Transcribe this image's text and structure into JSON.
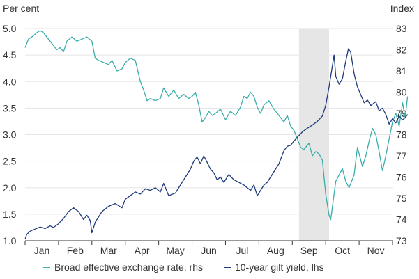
{
  "chart_data": {
    "type": "line",
    "left_unit": "Per cent",
    "right_unit": "Index",
    "x_labels": [
      "Jan",
      "Feb",
      "Mar",
      "Apr",
      "May",
      "Jun",
      "Jul",
      "Aug",
      "Sep",
      "Oct",
      "Nov"
    ],
    "x_range": [
      0,
      11
    ],
    "left_axis": {
      "range": [
        1.0,
        5.0
      ],
      "ticks": [
        "1.0",
        "1.5",
        "2.0",
        "2.5",
        "3.0",
        "3.5",
        "4.0",
        "4.5",
        "5.0"
      ]
    },
    "right_axis": {
      "range": [
        73,
        83
      ],
      "ticks": [
        "73",
        "74",
        "75",
        "76",
        "77",
        "78",
        "79",
        "80",
        "81",
        "82",
        "83"
      ]
    },
    "grid": true,
    "shaded_region": {
      "x_start": 8.2,
      "x_end": 9.1,
      "color": "#e6e6e6"
    },
    "legend_position": "bottom",
    "colors": {
      "exchange": "#3aada8",
      "gilt": "#1f3a7a",
      "grid": "#e5e5e5",
      "shade": "#e6e6e6"
    },
    "series": [
      {
        "name": "Broad effective exchange rate, rhs",
        "axis": "right",
        "color": "#3aada8",
        "points": [
          [
            0.0,
            82.1
          ],
          [
            0.1,
            82.5
          ],
          [
            0.2,
            82.6
          ],
          [
            0.35,
            82.8
          ],
          [
            0.45,
            82.9
          ],
          [
            0.55,
            82.8
          ],
          [
            0.65,
            82.6
          ],
          [
            0.75,
            82.4
          ],
          [
            0.85,
            82.2
          ],
          [
            0.95,
            82.0
          ],
          [
            1.05,
            82.1
          ],
          [
            1.15,
            81.9
          ],
          [
            1.25,
            82.4
          ],
          [
            1.4,
            82.6
          ],
          [
            1.55,
            82.4
          ],
          [
            1.7,
            82.5
          ],
          [
            1.85,
            82.6
          ],
          [
            2.0,
            82.4
          ],
          [
            2.1,
            81.6
          ],
          [
            2.2,
            81.5
          ],
          [
            2.35,
            81.4
          ],
          [
            2.5,
            81.3
          ],
          [
            2.6,
            81.5
          ],
          [
            2.75,
            81.0
          ],
          [
            2.9,
            81.1
          ],
          [
            3.0,
            81.4
          ],
          [
            3.15,
            81.6
          ],
          [
            3.3,
            81.5
          ],
          [
            3.45,
            80.5
          ],
          [
            3.55,
            80.1
          ],
          [
            3.65,
            79.6
          ],
          [
            3.75,
            79.7
          ],
          [
            3.9,
            79.6
          ],
          [
            4.05,
            79.7
          ],
          [
            4.15,
            80.2
          ],
          [
            4.3,
            79.8
          ],
          [
            4.45,
            80.1
          ],
          [
            4.6,
            79.7
          ],
          [
            4.75,
            79.9
          ],
          [
            4.9,
            79.7
          ],
          [
            5.0,
            79.8
          ],
          [
            5.1,
            80.0
          ],
          [
            5.2,
            79.4
          ],
          [
            5.3,
            78.6
          ],
          [
            5.4,
            78.8
          ],
          [
            5.5,
            79.1
          ],
          [
            5.6,
            78.9
          ],
          [
            5.7,
            79.0
          ],
          [
            5.85,
            79.2
          ],
          [
            6.0,
            78.7
          ],
          [
            6.15,
            79.1
          ],
          [
            6.3,
            78.9
          ],
          [
            6.45,
            79.3
          ],
          [
            6.55,
            79.8
          ],
          [
            6.65,
            79.7
          ],
          [
            6.75,
            80.0
          ],
          [
            6.85,
            79.8
          ],
          [
            6.95,
            79.3
          ],
          [
            7.05,
            79.0
          ],
          [
            7.15,
            79.4
          ],
          [
            7.3,
            79.6
          ],
          [
            7.45,
            79.2
          ],
          [
            7.6,
            78.9
          ],
          [
            7.75,
            78.6
          ],
          [
            7.85,
            78.9
          ],
          [
            7.95,
            78.4
          ],
          [
            8.05,
            78.2
          ],
          [
            8.15,
            77.8
          ],
          [
            8.25,
            77.4
          ],
          [
            8.35,
            77.3
          ],
          [
            8.5,
            77.6
          ],
          [
            8.6,
            77.0
          ],
          [
            8.7,
            77.2
          ],
          [
            8.8,
            77.1
          ],
          [
            8.9,
            76.8
          ],
          [
            9.0,
            75.2
          ],
          [
            9.1,
            74.2
          ],
          [
            9.15,
            74.0
          ],
          [
            9.3,
            75.8
          ],
          [
            9.5,
            76.4
          ],
          [
            9.6,
            75.8
          ],
          [
            9.7,
            75.5
          ],
          [
            9.85,
            76.1
          ],
          [
            9.95,
            77.4
          ],
          [
            10.1,
            76.5
          ],
          [
            10.2,
            77.0
          ],
          [
            10.3,
            77.7
          ],
          [
            10.4,
            78.3
          ],
          [
            10.5,
            78.0
          ],
          [
            10.6,
            77.2
          ],
          [
            10.7,
            76.3
          ],
          [
            10.8,
            77.0
          ],
          [
            10.9,
            77.8
          ],
          [
            11.0,
            78.6
          ],
          [
            11.1,
            79.0
          ],
          [
            11.2,
            78.4
          ],
          [
            11.3,
            79.5
          ],
          [
            11.38,
            78.8
          ],
          [
            11.45,
            79.8
          ]
        ]
      },
      {
        "name": "10-year gilt yield, lhs",
        "axis": "left",
        "color": "#1f3a7a",
        "points": [
          [
            0.0,
            1.03
          ],
          [
            0.05,
            1.12
          ],
          [
            0.15,
            1.18
          ],
          [
            0.3,
            1.22
          ],
          [
            0.45,
            1.26
          ],
          [
            0.6,
            1.23
          ],
          [
            0.75,
            1.28
          ],
          [
            0.85,
            1.25
          ],
          [
            1.0,
            1.32
          ],
          [
            1.15,
            1.42
          ],
          [
            1.3,
            1.55
          ],
          [
            1.45,
            1.62
          ],
          [
            1.6,
            1.55
          ],
          [
            1.75,
            1.4
          ],
          [
            1.85,
            1.48
          ],
          [
            1.95,
            1.38
          ],
          [
            2.0,
            1.15
          ],
          [
            2.1,
            1.35
          ],
          [
            2.3,
            1.55
          ],
          [
            2.5,
            1.65
          ],
          [
            2.7,
            1.7
          ],
          [
            2.9,
            1.62
          ],
          [
            3.0,
            1.78
          ],
          [
            3.15,
            1.85
          ],
          [
            3.3,
            1.92
          ],
          [
            3.45,
            1.88
          ],
          [
            3.6,
            1.98
          ],
          [
            3.75,
            1.95
          ],
          [
            3.9,
            2.0
          ],
          [
            4.05,
            1.92
          ],
          [
            4.15,
            2.08
          ],
          [
            4.3,
            1.85
          ],
          [
            4.5,
            1.9
          ],
          [
            4.65,
            2.05
          ],
          [
            4.8,
            2.2
          ],
          [
            4.95,
            2.35
          ],
          [
            5.05,
            2.5
          ],
          [
            5.15,
            2.58
          ],
          [
            5.25,
            2.45
          ],
          [
            5.35,
            2.6
          ],
          [
            5.45,
            2.48
          ],
          [
            5.55,
            2.35
          ],
          [
            5.65,
            2.28
          ],
          [
            5.75,
            2.15
          ],
          [
            5.85,
            2.2
          ],
          [
            5.95,
            2.1
          ],
          [
            6.1,
            2.25
          ],
          [
            6.25,
            2.15
          ],
          [
            6.4,
            2.1
          ],
          [
            6.55,
            2.05
          ],
          [
            6.65,
            2.0
          ],
          [
            6.75,
            1.95
          ],
          [
            6.85,
            2.05
          ],
          [
            6.95,
            1.85
          ],
          [
            7.05,
            1.95
          ],
          [
            7.15,
            2.05
          ],
          [
            7.25,
            2.1
          ],
          [
            7.35,
            2.2
          ],
          [
            7.45,
            2.3
          ],
          [
            7.6,
            2.45
          ],
          [
            7.75,
            2.7
          ],
          [
            7.85,
            2.78
          ],
          [
            7.95,
            2.8
          ],
          [
            8.05,
            2.88
          ],
          [
            8.15,
            2.95
          ],
          [
            8.3,
            3.05
          ],
          [
            8.45,
            3.12
          ],
          [
            8.6,
            3.18
          ],
          [
            8.75,
            3.25
          ],
          [
            8.9,
            3.35
          ],
          [
            9.0,
            3.55
          ],
          [
            9.1,
            3.9
          ],
          [
            9.2,
            4.3
          ],
          [
            9.25,
            4.5
          ],
          [
            9.3,
            4.1
          ],
          [
            9.4,
            3.95
          ],
          [
            9.5,
            4.05
          ],
          [
            9.6,
            4.38
          ],
          [
            9.68,
            4.62
          ],
          [
            9.75,
            4.55
          ],
          [
            9.85,
            4.15
          ],
          [
            9.95,
            3.9
          ],
          [
            10.05,
            3.75
          ],
          [
            10.15,
            3.6
          ],
          [
            10.25,
            3.65
          ],
          [
            10.35,
            3.55
          ],
          [
            10.5,
            3.62
          ],
          [
            10.6,
            3.45
          ],
          [
            10.7,
            3.5
          ],
          [
            10.8,
            3.38
          ],
          [
            10.9,
            3.2
          ],
          [
            11.0,
            3.3
          ],
          [
            11.1,
            3.22
          ],
          [
            11.2,
            3.35
          ],
          [
            11.3,
            3.28
          ],
          [
            11.38,
            3.32
          ],
          [
            11.45,
            3.38
          ]
        ]
      }
    ]
  }
}
